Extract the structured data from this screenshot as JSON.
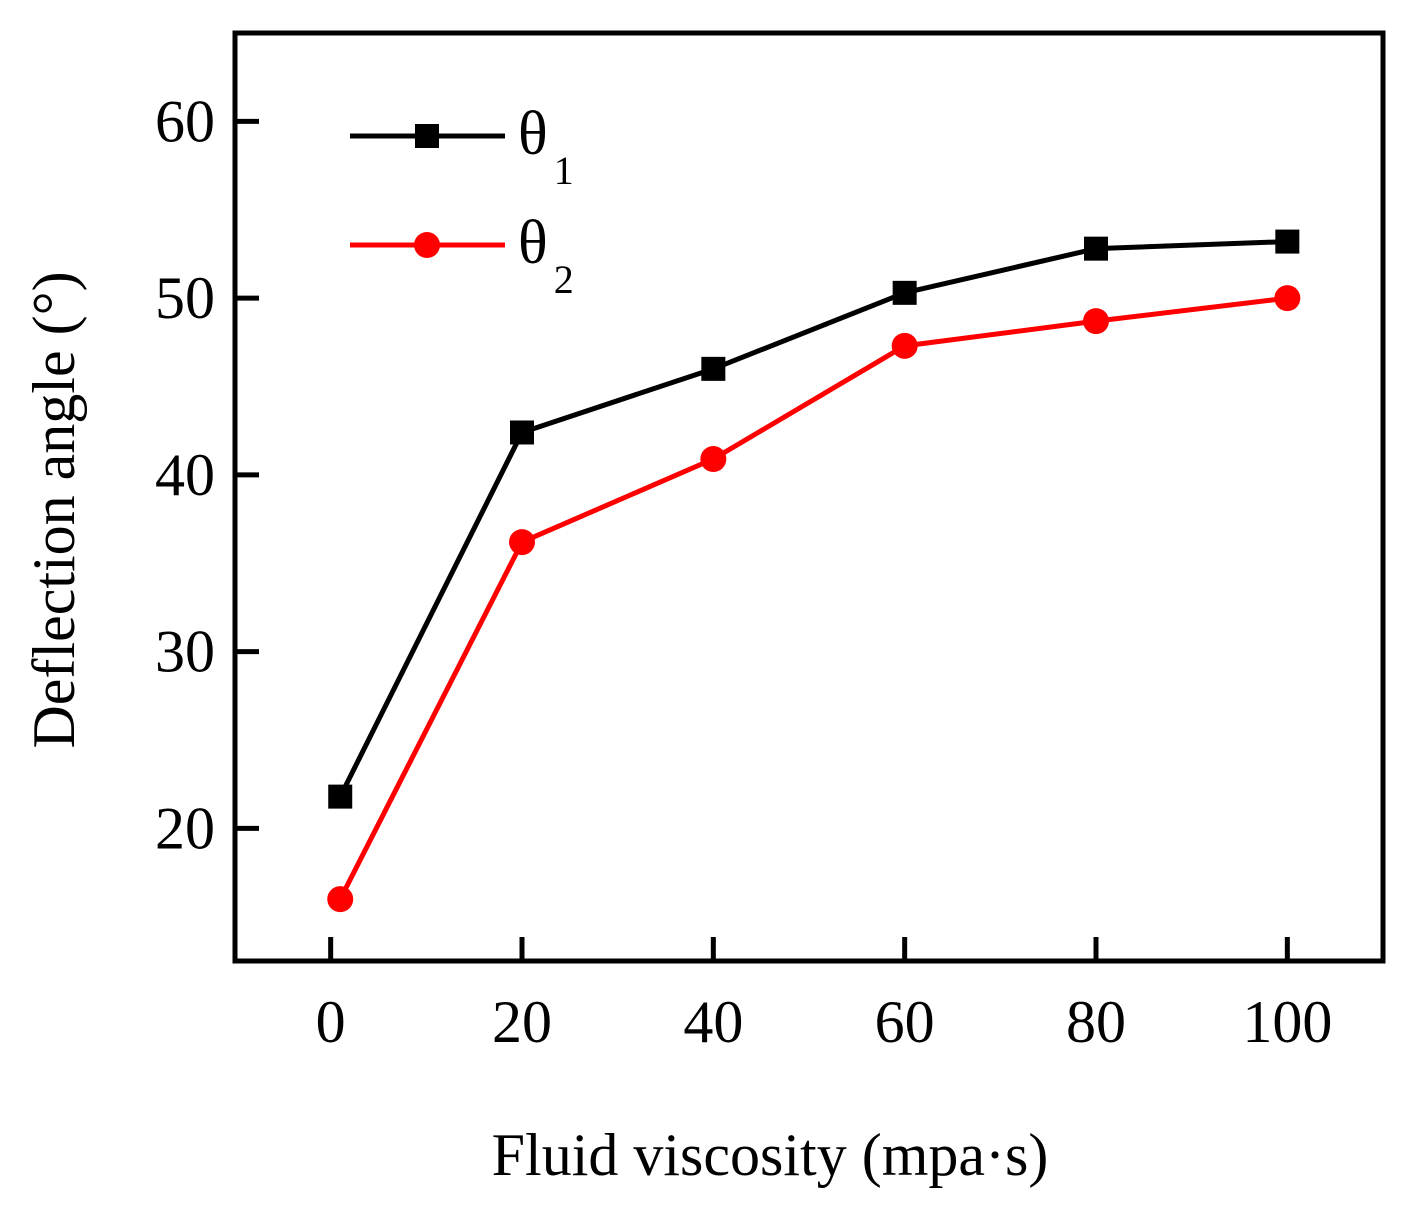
{
  "chart_data": {
    "type": "line",
    "title": "",
    "xlabel": "Fluid viscosity (mpa·s)",
    "ylabel": "Deflection angle (°)",
    "xlim": [
      -10,
      110
    ],
    "ylim": [
      12.5,
      65
    ],
    "x_ticks": [
      0,
      20,
      40,
      60,
      80,
      100
    ],
    "x_tick_labels": [
      "0",
      "20",
      "40",
      "60",
      "80",
      "100"
    ],
    "y_ticks": [
      20,
      30,
      40,
      50,
      60
    ],
    "y_tick_labels": [
      "20",
      "30",
      "40",
      "50",
      "60"
    ],
    "grid": false,
    "legend_position": "top-left",
    "x": [
      1,
      20,
      40,
      60,
      80,
      100
    ],
    "series": [
      {
        "name": "θ",
        "subscript": "1",
        "marker": "square",
        "color": "#000000",
        "values": [
          21.8,
          42.4,
          46.0,
          50.3,
          52.8,
          53.2
        ]
      },
      {
        "name": "θ",
        "subscript": "2",
        "marker": "circle",
        "color": "#ff0000",
        "values": [
          16.0,
          36.2,
          40.9,
          47.3,
          48.7,
          50.0
        ]
      }
    ]
  }
}
